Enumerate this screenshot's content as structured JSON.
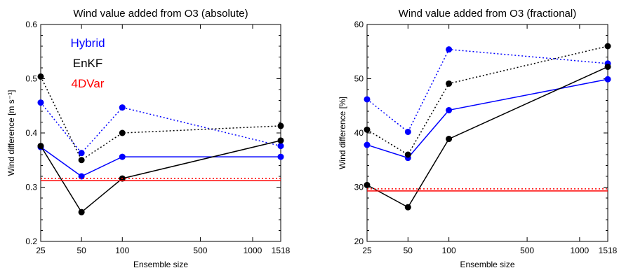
{
  "chart_data": [
    {
      "type": "line",
      "title": "Wind value added from O3 (absolute)",
      "xlabel": "Ensemble size",
      "ylabel": "Wind difference [m s⁻¹]",
      "x_ticks": [
        "25",
        "50",
        "100",
        "500",
        "1000",
        "1518"
      ],
      "ylim": [
        0.2,
        0.6
      ],
      "y_ticks": [
        "0.2",
        "0.3",
        "0.4",
        "0.5",
        "0.6"
      ],
      "legend": [
        "Hybrid",
        "EnKF",
        "4DVar"
      ],
      "series": [
        {
          "name": "Hybrid",
          "style": "dotted",
          "color": "#0000ff",
          "x": [
            "25",
            "50",
            "100",
            "1518"
          ],
          "values": [
            0.456,
            0.363,
            0.447,
            0.376
          ]
        },
        {
          "name": "Hybrid",
          "style": "solid",
          "color": "#0000ff",
          "x": [
            "25",
            "50",
            "100",
            "1518"
          ],
          "values": [
            0.374,
            0.32,
            0.356,
            0.356
          ]
        },
        {
          "name": "EnKF",
          "style": "dotted",
          "color": "#000000",
          "x": [
            "25",
            "50",
            "100",
            "1518"
          ],
          "values": [
            0.504,
            0.35,
            0.4,
            0.413
          ]
        },
        {
          "name": "EnKF",
          "style": "solid",
          "color": "#000000",
          "x": [
            "25",
            "50",
            "100",
            "1518"
          ],
          "values": [
            0.376,
            0.254,
            0.316,
            0.386
          ]
        },
        {
          "name": "4DVar",
          "style": "dotted",
          "color": "#ff0000",
          "hline": 0.316
        },
        {
          "name": "4DVar",
          "style": "solid",
          "color": "#ff0000",
          "hline": 0.312
        }
      ]
    },
    {
      "type": "line",
      "title": "Wind value added from O3 (fractional)",
      "xlabel": "Ensemble size",
      "ylabel": "Wind difference  [%]",
      "x_ticks": [
        "25",
        "50",
        "100",
        "500",
        "1000",
        "1518"
      ],
      "ylim": [
        20,
        60
      ],
      "y_ticks": [
        "20",
        "30",
        "40",
        "50",
        "60"
      ],
      "series": [
        {
          "name": "Hybrid",
          "style": "dotted",
          "color": "#0000ff",
          "x": [
            "25",
            "50",
            "100",
            "1518"
          ],
          "values": [
            46.2,
            40.2,
            55.4,
            52.8
          ]
        },
        {
          "name": "Hybrid",
          "style": "solid",
          "color": "#0000ff",
          "x": [
            "25",
            "50",
            "100",
            "1518"
          ],
          "values": [
            37.8,
            35.4,
            44.2,
            49.9
          ]
        },
        {
          "name": "EnKF",
          "style": "dotted",
          "color": "#000000",
          "x": [
            "25",
            "50",
            "100",
            "1518"
          ],
          "values": [
            40.6,
            36.0,
            49.1,
            56.0
          ]
        },
        {
          "name": "EnKF",
          "style": "solid",
          "color": "#000000",
          "x": [
            "25",
            "50",
            "100",
            "1518"
          ],
          "values": [
            30.4,
            26.3,
            38.9,
            52.2
          ]
        },
        {
          "name": "4DVar",
          "style": "dotted",
          "color": "#ff0000",
          "hline": 29.7
        },
        {
          "name": "4DVar",
          "style": "solid",
          "color": "#ff0000",
          "hline": 29.3
        }
      ]
    }
  ]
}
